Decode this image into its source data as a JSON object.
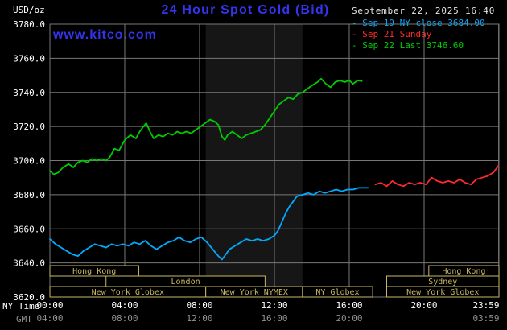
{
  "header": {
    "units_label": "USD/oz",
    "title": "24 Hour Spot Gold (Bid)",
    "datetime": "September 22, 2025 16:40",
    "watermark": "www.kitco.com"
  },
  "legend": {
    "items": [
      {
        "marker": "-",
        "label": "Sep 19 NY close 3684.00",
        "color": "#00AAFF"
      },
      {
        "marker": "-",
        "label": "Sep 21 Sunday",
        "color": "#FF2B2B"
      },
      {
        "marker": "-",
        "label": "Sep 22 Last 3746.60",
        "color": "#00CC00"
      }
    ]
  },
  "axes": {
    "x_ny_label": "NY Time",
    "x_gmt_label": "GMT",
    "y_ticks": [
      {
        "v": 3780,
        "label": "3780.0"
      },
      {
        "v": 3760,
        "label": "3760.0"
      },
      {
        "v": 3740,
        "label": "3740.0"
      },
      {
        "v": 3720,
        "label": "3720.0"
      },
      {
        "v": 3700,
        "label": "3700.0"
      },
      {
        "v": 3680,
        "label": "3680.0"
      },
      {
        "v": 3660,
        "label": "3660.0"
      },
      {
        "v": 3640,
        "label": "3640.0"
      },
      {
        "v": 3620,
        "label": "3620.0"
      }
    ],
    "x_ny_ticks": [
      {
        "h": 0,
        "label": "00:00"
      },
      {
        "h": 4,
        "label": "04:00"
      },
      {
        "h": 8,
        "label": "08:00"
      },
      {
        "h": 12,
        "label": "12:00"
      },
      {
        "h": 16,
        "label": "16:00"
      },
      {
        "h": 20,
        "label": "20:00"
      },
      {
        "h": 23.983,
        "label": "23:59"
      }
    ],
    "x_gmt_ticks": [
      {
        "h": 0,
        "label": "04:00"
      },
      {
        "h": 4,
        "label": "08:00"
      },
      {
        "h": 8,
        "label": "12:00"
      },
      {
        "h": 12,
        "label": "16:00"
      },
      {
        "h": 16,
        "label": "20:00"
      },
      {
        "h": 23.983,
        "label": "03:59"
      }
    ]
  },
  "sessions": {
    "color": "#C9B765",
    "rows": [
      [
        {
          "label": "Hong Kong",
          "start": 0,
          "end": 4.75
        },
        {
          "label": "Hong Kong",
          "start": 20.25,
          "end": 24
        }
      ],
      [
        {
          "label": "London",
          "start": 3,
          "end": 11.5
        },
        {
          "label": "Sydney",
          "start": 18,
          "end": 24
        }
      ],
      [
        {
          "label": "New York Globex",
          "start": 0,
          "end": 8.33
        },
        {
          "label": "New York NYMEX",
          "start": 8.33,
          "end": 13.5
        },
        {
          "label": "NY Globex",
          "start": 13.5,
          "end": 17.25
        },
        {
          "label": "New York Globex",
          "start": 18,
          "end": 24
        }
      ]
    ]
  },
  "chart_data": {
    "type": "line",
    "title": "24 Hour Spot Gold (Bid)",
    "xlabel": "NY Time",
    "ylabel": "USD/oz",
    "xlim": [
      0,
      24
    ],
    "ylim": [
      3620,
      3780
    ],
    "grid": true,
    "legend_position": "top-right",
    "highlight_band": {
      "start": 8.33,
      "end": 13.5,
      "color": "#161616"
    },
    "colors": {
      "grid": "#787878",
      "background": "#000000",
      "accent_blue": "#3434EE",
      "session": "#C9B765",
      "tick_ny": "#FFFFFF",
      "tick_gmt": "#909090"
    },
    "series": [
      {
        "name": "Sep 19 NY close",
        "color": "#00AAFF",
        "close": 3684.0,
        "points": [
          [
            0,
            3654
          ],
          [
            0.3,
            3651
          ],
          [
            0.6,
            3649
          ],
          [
            0.9,
            3647
          ],
          [
            1.2,
            3645
          ],
          [
            1.5,
            3644
          ],
          [
            1.8,
            3647
          ],
          [
            2.1,
            3649
          ],
          [
            2.4,
            3651
          ],
          [
            2.7,
            3650
          ],
          [
            3,
            3649
          ],
          [
            3.3,
            3651
          ],
          [
            3.6,
            3650
          ],
          [
            3.9,
            3651
          ],
          [
            4.2,
            3650
          ],
          [
            4.5,
            3652
          ],
          [
            4.8,
            3651
          ],
          [
            5.1,
            3653
          ],
          [
            5.4,
            3650
          ],
          [
            5.7,
            3648
          ],
          [
            6,
            3650
          ],
          [
            6.3,
            3652
          ],
          [
            6.6,
            3653
          ],
          [
            6.9,
            3655
          ],
          [
            7.2,
            3653
          ],
          [
            7.5,
            3652
          ],
          [
            7.8,
            3654
          ],
          [
            8.1,
            3655
          ],
          [
            8.4,
            3652
          ],
          [
            8.7,
            3648
          ],
          [
            9,
            3644
          ],
          [
            9.2,
            3642
          ],
          [
            9.4,
            3645
          ],
          [
            9.6,
            3648
          ],
          [
            9.9,
            3650
          ],
          [
            10.2,
            3652
          ],
          [
            10.5,
            3654
          ],
          [
            10.8,
            3653
          ],
          [
            11.1,
            3654
          ],
          [
            11.4,
            3653
          ],
          [
            11.7,
            3654
          ],
          [
            12,
            3656
          ],
          [
            12.2,
            3659
          ],
          [
            12.4,
            3664
          ],
          [
            12.6,
            3669
          ],
          [
            12.8,
            3673
          ],
          [
            13,
            3676
          ],
          [
            13.2,
            3679
          ],
          [
            13.5,
            3680
          ],
          [
            13.8,
            3681
          ],
          [
            14.1,
            3680
          ],
          [
            14.4,
            3682
          ],
          [
            14.7,
            3681
          ],
          [
            15,
            3682
          ],
          [
            15.3,
            3683
          ],
          [
            15.6,
            3682
          ],
          [
            15.9,
            3683
          ],
          [
            16.2,
            3683
          ],
          [
            16.5,
            3684
          ],
          [
            17,
            3684
          ]
        ]
      },
      {
        "name": "Sep 21 Sunday",
        "color": "#FF2B2B",
        "points": [
          [
            17.4,
            3686
          ],
          [
            17.7,
            3687
          ],
          [
            18,
            3685
          ],
          [
            18.3,
            3688
          ],
          [
            18.6,
            3686
          ],
          [
            18.9,
            3685
          ],
          [
            19.2,
            3687
          ],
          [
            19.5,
            3686
          ],
          [
            19.8,
            3687
          ],
          [
            20.1,
            3686
          ],
          [
            20.4,
            3690
          ],
          [
            20.7,
            3688
          ],
          [
            21,
            3687
          ],
          [
            21.3,
            3688
          ],
          [
            21.6,
            3687
          ],
          [
            21.9,
            3689
          ],
          [
            22.2,
            3687
          ],
          [
            22.5,
            3686
          ],
          [
            22.8,
            3689
          ],
          [
            23.1,
            3690
          ],
          [
            23.4,
            3691
          ],
          [
            23.7,
            3693
          ],
          [
            23.98,
            3697
          ]
        ]
      },
      {
        "name": "Sep 22 Last",
        "color": "#00CC00",
        "last": 3746.6,
        "points": [
          [
            0,
            3694
          ],
          [
            0.2,
            3692
          ],
          [
            0.45,
            3693
          ],
          [
            0.7,
            3696
          ],
          [
            1,
            3698
          ],
          [
            1.25,
            3696
          ],
          [
            1.5,
            3699
          ],
          [
            1.75,
            3700
          ],
          [
            2,
            3699
          ],
          [
            2.25,
            3701
          ],
          [
            2.5,
            3700
          ],
          [
            2.75,
            3701
          ],
          [
            3,
            3700
          ],
          [
            3.2,
            3702
          ],
          [
            3.45,
            3707
          ],
          [
            3.7,
            3706
          ],
          [
            4,
            3712
          ],
          [
            4.3,
            3715
          ],
          [
            4.6,
            3713
          ],
          [
            4.8,
            3717
          ],
          [
            5,
            3720
          ],
          [
            5.15,
            3722
          ],
          [
            5.35,
            3717
          ],
          [
            5.55,
            3713
          ],
          [
            5.8,
            3715
          ],
          [
            6.05,
            3714
          ],
          [
            6.3,
            3716
          ],
          [
            6.55,
            3715
          ],
          [
            6.8,
            3717
          ],
          [
            7.05,
            3716
          ],
          [
            7.3,
            3717
          ],
          [
            7.55,
            3716
          ],
          [
            7.8,
            3718
          ],
          [
            8.05,
            3720
          ],
          [
            8.3,
            3722
          ],
          [
            8.55,
            3724
          ],
          [
            8.8,
            3723
          ],
          [
            9,
            3721
          ],
          [
            9.2,
            3714
          ],
          [
            9.35,
            3712
          ],
          [
            9.5,
            3715
          ],
          [
            9.75,
            3717
          ],
          [
            10,
            3715
          ],
          [
            10.25,
            3713
          ],
          [
            10.5,
            3715
          ],
          [
            10.75,
            3716
          ],
          [
            11,
            3717
          ],
          [
            11.25,
            3718
          ],
          [
            11.5,
            3721
          ],
          [
            11.75,
            3725
          ],
          [
            12,
            3729
          ],
          [
            12.25,
            3733
          ],
          [
            12.5,
            3735
          ],
          [
            12.75,
            3737
          ],
          [
            13,
            3736
          ],
          [
            13.25,
            3739
          ],
          [
            13.5,
            3740
          ],
          [
            13.75,
            3742
          ],
          [
            14,
            3744
          ],
          [
            14.3,
            3746
          ],
          [
            14.5,
            3748
          ],
          [
            14.75,
            3745
          ],
          [
            15,
            3743
          ],
          [
            15.25,
            3746
          ],
          [
            15.5,
            3747
          ],
          [
            15.75,
            3746
          ],
          [
            16,
            3747
          ],
          [
            16.2,
            3745
          ],
          [
            16.45,
            3747
          ],
          [
            16.67,
            3746.6
          ]
        ]
      }
    ]
  }
}
